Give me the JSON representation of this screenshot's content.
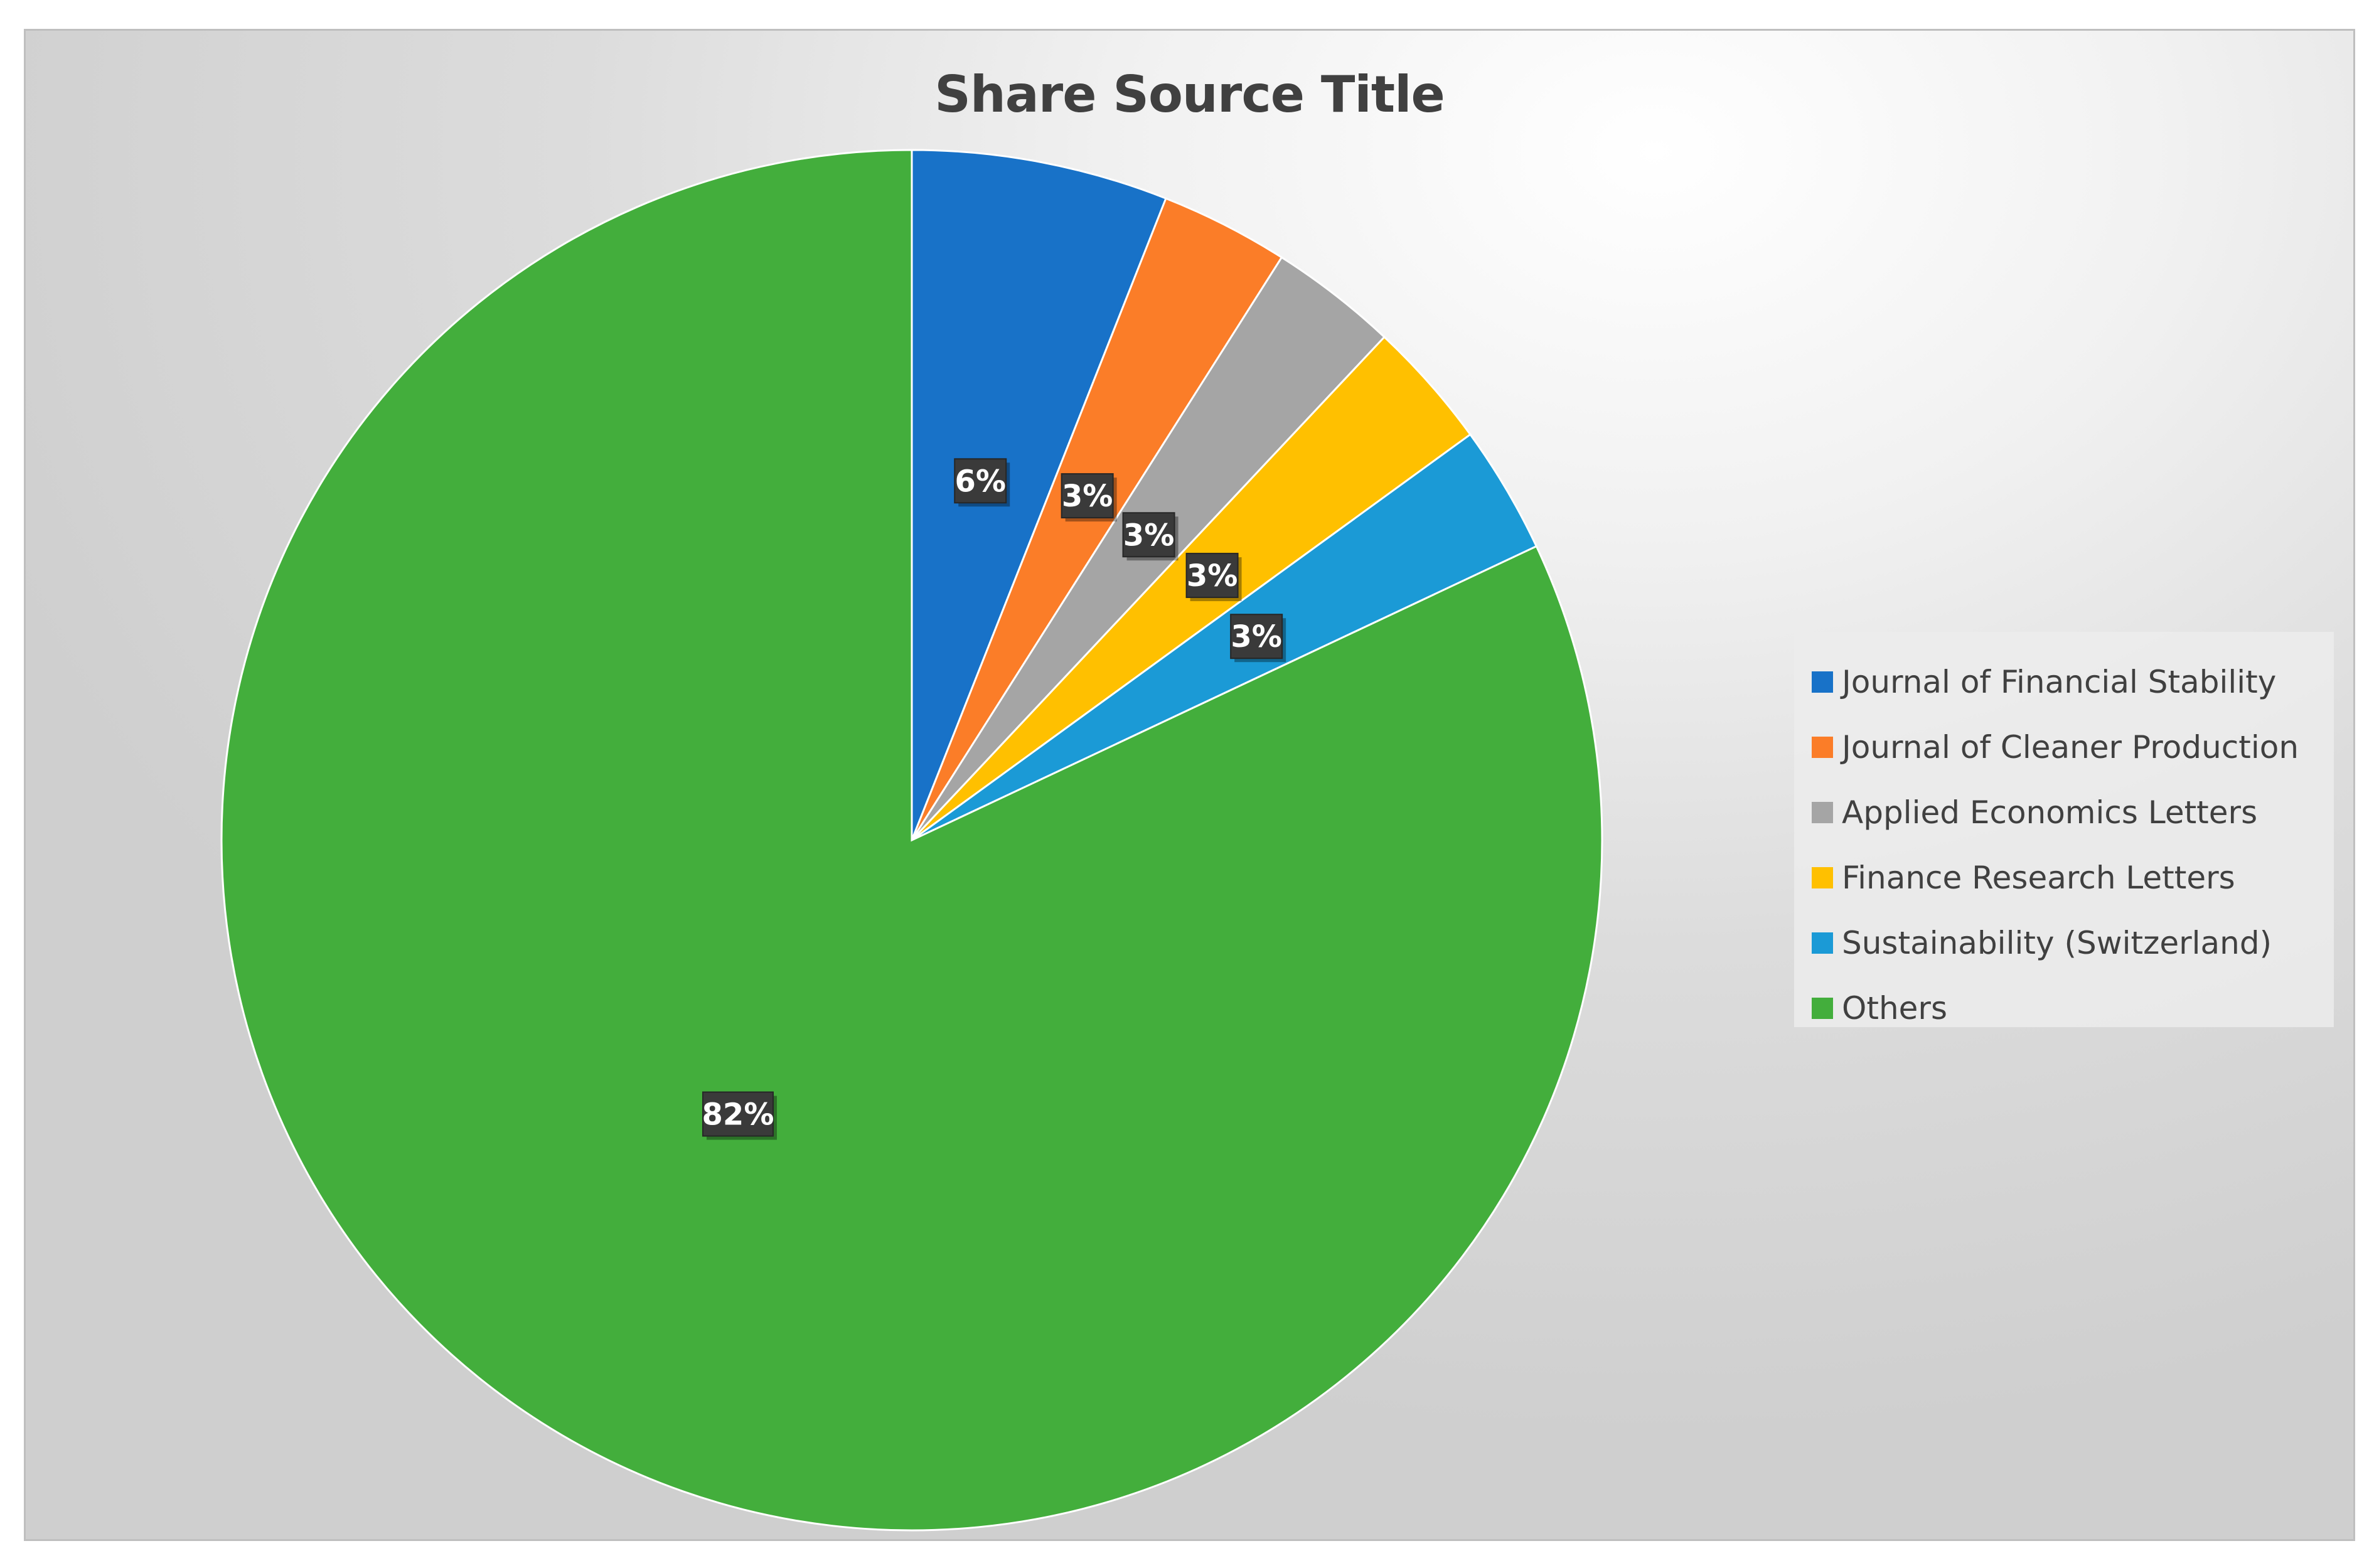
{
  "chart_data": {
    "type": "pie",
    "title": "Share Source Title",
    "categories": [
      "Journal of Financial Stability",
      "Journal of Cleaner Production",
      "Applied Economics Letters",
      "Finance Research Letters",
      "Sustainability (Switzerland)",
      "Others"
    ],
    "values": [
      6,
      3,
      3,
      3,
      3,
      82
    ],
    "value_labels": [
      "6%",
      "3%",
      "3%",
      "3%",
      "3%",
      "82%"
    ],
    "colors": [
      "#1872c8",
      "#fb7d28",
      "#a5a5a5",
      "#ffc000",
      "#1b9ad6",
      "#43ae3c"
    ],
    "start_angle_deg": 0,
    "direction": "clockwise",
    "legend_position": "right",
    "data_labels": true
  }
}
